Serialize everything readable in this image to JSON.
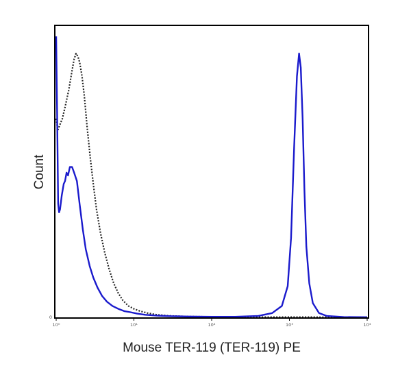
{
  "chart_data": {
    "type": "line",
    "title": "",
    "xlabel": "Mouse TER-119 (TER-119) PE",
    "ylabel": "Count",
    "x_scale": "log",
    "xlim": [
      1,
      10000
    ],
    "ylim": [
      0,
      100
    ],
    "grid": false,
    "legend": "none",
    "x_ticks": [
      {
        "value": 1,
        "label": "10⁰"
      },
      {
        "value": 10,
        "label": "10¹"
      },
      {
        "value": 100,
        "label": "10²"
      },
      {
        "value": 1000,
        "label": "10³"
      },
      {
        "value": 10000,
        "label": "10⁴"
      }
    ],
    "y_ticks": [
      {
        "value": 0,
        "label": "0"
      }
    ],
    "series": [
      {
        "style": "dotted",
        "color": "#222222",
        "x": [
          1.0,
          1.05,
          1.12,
          1.2,
          1.3,
          1.45,
          1.6,
          1.7,
          1.8,
          1.9,
          2.0,
          2.15,
          2.3,
          2.5,
          2.75,
          3.0,
          3.3,
          3.7,
          4.2,
          4.8,
          5.5,
          6.3,
          7.2,
          8.5,
          10,
          12,
          15,
          20,
          30,
          50,
          100,
          200,
          500,
          1000,
          10000
        ],
        "y": [
          70,
          66,
          68,
          70,
          74,
          80,
          87,
          91,
          93,
          92,
          90,
          85,
          78,
          67,
          56,
          47,
          38,
          30,
          23,
          17,
          12,
          8.5,
          6,
          4,
          3,
          2.2,
          1.5,
          0.9,
          0.5,
          0.3,
          0.2,
          0.15,
          0.1,
          0.1,
          0.05
        ]
      },
      {
        "style": "solid",
        "color": "#1a1acc",
        "x": [
          1.0,
          1.03,
          1.06,
          1.09,
          1.12,
          1.18,
          1.25,
          1.3,
          1.36,
          1.42,
          1.5,
          1.6,
          1.7,
          1.85,
          2.0,
          2.2,
          2.4,
          2.7,
          3.0,
          3.4,
          3.9,
          4.5,
          5.3,
          6.3,
          7.5,
          9,
          11,
          14,
          20,
          30,
          50,
          100,
          200,
          400,
          600,
          800,
          950,
          1050,
          1150,
          1250,
          1330,
          1400,
          1480,
          1560,
          1650,
          1800,
          2000,
          2400,
          3000,
          5000,
          10000
        ],
        "y": [
          99,
          70,
          40,
          37,
          38,
          43,
          47,
          48,
          51,
          50,
          53,
          53,
          51,
          48,
          40,
          31,
          24,
          18,
          14,
          10.5,
          7.5,
          5.5,
          4,
          3,
          2.2,
          1.8,
          1.3,
          0.9,
          0.6,
          0.4,
          0.3,
          0.2,
          0.2,
          0.5,
          1.5,
          4,
          11,
          28,
          60,
          85,
          93,
          88,
          70,
          45,
          25,
          12,
          5,
          1.5,
          0.5,
          0.1,
          0.05
        ]
      }
    ]
  }
}
